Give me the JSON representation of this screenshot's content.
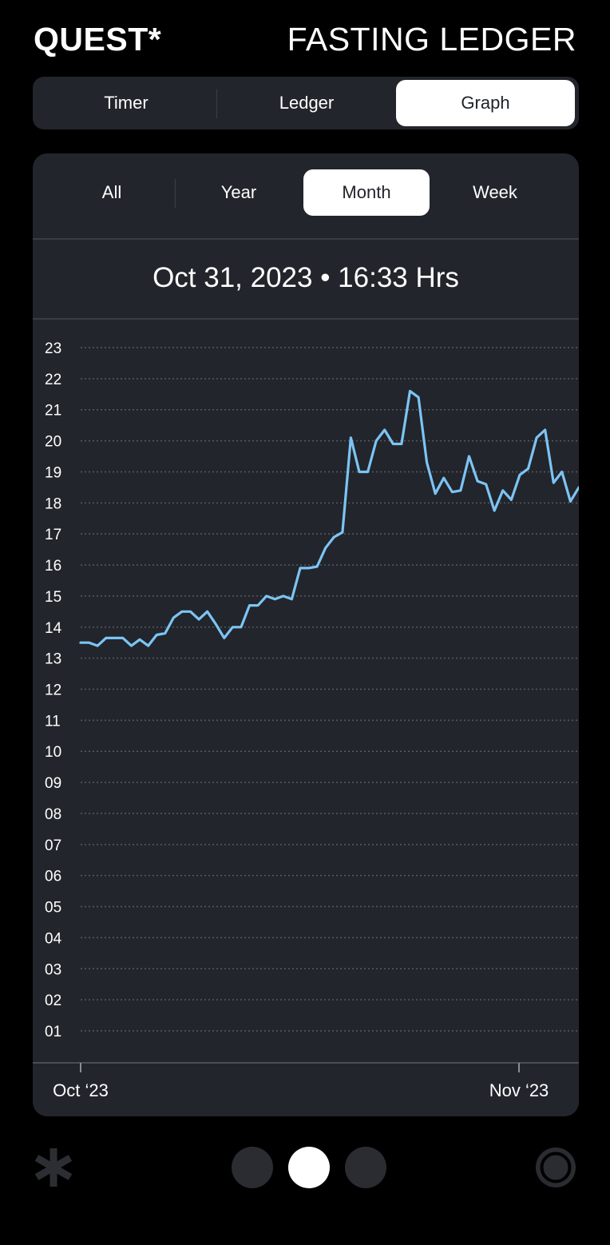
{
  "app": {
    "brand": "QUEST*",
    "title": "FASTING LEDGER"
  },
  "main_tabs": [
    {
      "label": "Timer",
      "active": false
    },
    {
      "label": "Ledger",
      "active": false
    },
    {
      "label": "Graph",
      "active": true
    }
  ],
  "range_tabs": [
    {
      "label": "All",
      "active": false
    },
    {
      "label": "Year",
      "active": false
    },
    {
      "label": "Month",
      "active": true
    },
    {
      "label": "Week",
      "active": false
    }
  ],
  "readout": {
    "text": "Oct 31, 2023 • 16:33 Hrs"
  },
  "colors": {
    "background": "#000000",
    "surface": "#22252b",
    "line": "#7cc4f4",
    "active_tab": "#ffffff"
  },
  "chart_data": {
    "type": "line",
    "title": "",
    "xlabel": "",
    "ylabel": "",
    "x_ticks": [
      "Oct ‘23",
      "Nov ‘23"
    ],
    "y_ticks": [
      "01",
      "02",
      "03",
      "04",
      "05",
      "06",
      "07",
      "08",
      "09",
      "10",
      "11",
      "12",
      "13",
      "14",
      "15",
      "16",
      "17",
      "18",
      "19",
      "20",
      "21",
      "22",
      "23"
    ],
    "ylim": [
      0.9,
      23
    ],
    "grid": true,
    "cursor_label": "Oct 31, 2023",
    "cursor_index": 75,
    "series": [
      {
        "values": [
          13.5,
          13.5,
          13.4,
          13.65,
          13.65,
          13.65,
          13.4,
          13.6,
          13.4,
          13.75,
          13.8,
          14.3,
          14.5,
          14.5,
          14.25,
          14.5,
          14.1,
          13.65,
          14.0,
          14.0,
          14.7,
          14.7,
          15.0,
          14.9,
          15.0,
          14.9,
          15.9,
          15.9,
          15.95,
          16.55,
          16.9,
          17.05,
          20.1,
          19.0,
          19.0,
          20.0,
          20.35,
          19.9,
          19.9,
          21.6,
          21.4,
          19.3,
          18.3,
          18.8,
          18.35,
          18.4,
          19.5,
          18.7,
          18.6,
          17.75,
          18.4,
          18.1,
          18.9,
          19.1,
          20.1,
          20.35,
          18.65,
          19.0,
          18.05,
          18.5
        ]
      }
    ]
  },
  "bottom_nav": {
    "left_icon": "asterisk-icon",
    "right_icon": "ring-icon",
    "page_count": 3,
    "active_page": 2
  }
}
